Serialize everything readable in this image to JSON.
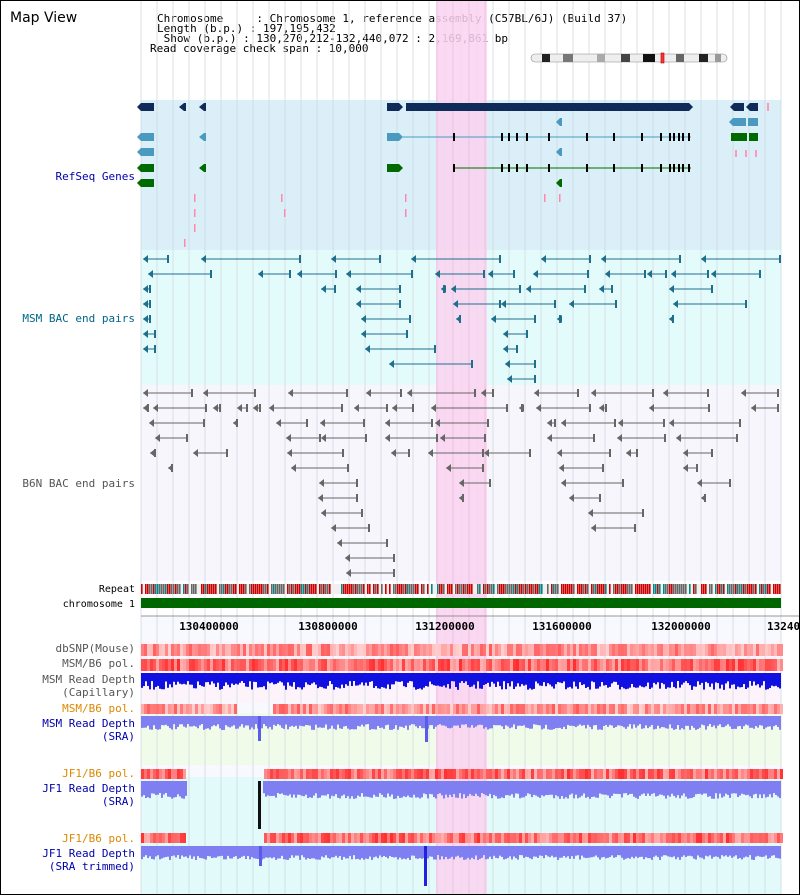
{
  "page": {
    "title": "Map View"
  },
  "header": {
    "line1": "Chromosome     : Chromosome 1, reference assembly (C57BL/6J) (Build 37)",
    "line2": "Length (b.p.) : 197,195,432",
    "line3": " Show (b.p.) : 130,270,212-132,440,072 : 2,169,861 bp",
    "line4": "Read coverage check span : 10,000"
  },
  "tracks": {
    "refseq": "RefSeq Genes",
    "msm_bac": "MSM BAC end pairs",
    "b6n_bac": "B6N BAC end pairs",
    "repeat": "Repeat",
    "chromosome": "chromosome 1",
    "dbsnp": "dbSNP(Mouse)",
    "msm_b6_pol_1": "MSM/B6 pol.",
    "msm_depth_cap_1": "MSM Read Depth",
    "msm_depth_cap_2": "(Capillary)",
    "msm_b6_pol_2": "MSM/B6 pol.",
    "msm_depth_sra_1": "MSM Read Depth",
    "msm_depth_sra_2": "(SRA)",
    "jf1_b6_pol_1": "JF1/B6 pol.",
    "jf1_depth_sra_1": "JF1 Read Depth",
    "jf1_depth_sra_2": "(SRA)",
    "jf1_b6_pol_2": "JF1/B6 pol.",
    "jf1_depth_trim_1": "JF1 Read Depth",
    "jf1_depth_trim_2": "(SRA trimmed)"
  },
  "axis": {
    "ticks": [
      "130400000",
      "130800000",
      "131200000",
      "131600000",
      "132000000",
      "13240"
    ]
  },
  "colors": {
    "refseq_label": "#0000aa",
    "msm_label": "#006688",
    "b6n_label": "#555555",
    "pol_orange_label": "#dd8800",
    "depth_blue_label": "#0000aa",
    "refseq_bg": "#dbeff9",
    "msm_bg": "#e4fbfb",
    "highlight": "#fad2f0",
    "gene_dark": "#102a5a",
    "gene_teal": "#4a9ac0",
    "gene_green": "#006a00",
    "chromosome_bar": "#006600",
    "depth_dark_blue": "#1010e0",
    "depth_light_blue": "#7f7ff2"
  }
}
